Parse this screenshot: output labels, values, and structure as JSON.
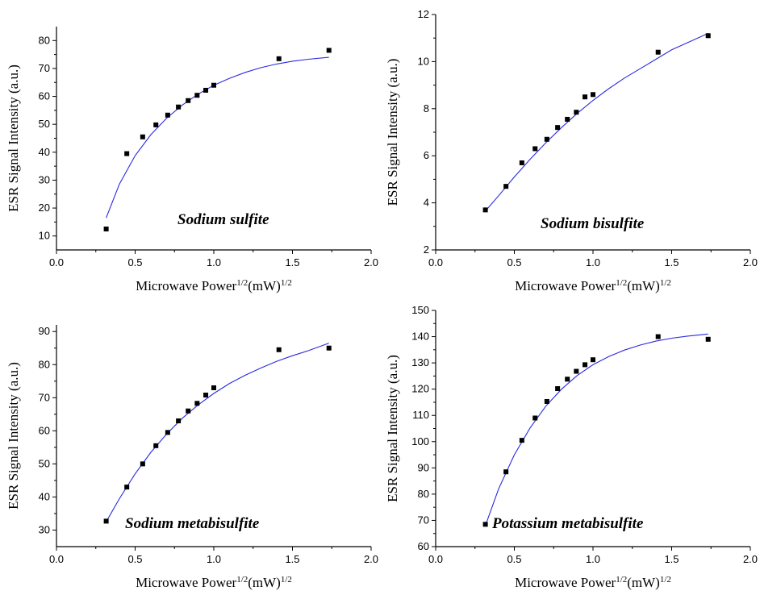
{
  "axis_text": {
    "xlabel_main": "Microwave Power",
    "xlabel_sup1": "1/2",
    "xlabel_mid": "(mW)",
    "xlabel_sup2": "1/2",
    "ylabel": "ESR Signal Intensity (a.u.)"
  },
  "chart_data": [
    {
      "type": "scatter",
      "annotation": "Sodium sulfite",
      "xlim": [
        0.0,
        2.0
      ],
      "xticks": [
        "0.0",
        "0.5",
        "1.0",
        "1.5",
        "2.0"
      ],
      "ylim": [
        5,
        85
      ],
      "yticks": [
        "10",
        "20",
        "30",
        "40",
        "50",
        "60",
        "70",
        "80"
      ],
      "points": {
        "x": [
          0.316,
          0.447,
          0.548,
          0.632,
          0.707,
          0.775,
          0.837,
          0.894,
          0.949,
          1.0,
          1.414,
          1.732
        ],
        "y": [
          12.5,
          39.5,
          45.5,
          49.8,
          53.3,
          56.2,
          58.5,
          60.4,
          62.2,
          64.0,
          73.5,
          76.5
        ]
      },
      "fit": {
        "x": [
          0.316,
          0.4,
          0.5,
          0.6,
          0.7,
          0.8,
          0.9,
          1.0,
          1.1,
          1.2,
          1.3,
          1.4,
          1.5,
          1.6,
          1.732
        ],
        "y": [
          16.5,
          28.6,
          38.8,
          46.3,
          52.2,
          56.9,
          60.8,
          64.0,
          66.5,
          68.6,
          70.3,
          71.6,
          72.6,
          73.3,
          74.0
        ]
      },
      "grid": false
    },
    {
      "type": "scatter",
      "annotation": "Sodium bisulfite",
      "xlim": [
        0.0,
        2.0
      ],
      "xticks": [
        "0.0",
        "0.5",
        "1.0",
        "1.5",
        "2.0"
      ],
      "ylim": [
        2,
        12
      ],
      "yticks": [
        "2",
        "4",
        "6",
        "8",
        "10",
        "12"
      ],
      "points": {
        "x": [
          0.316,
          0.447,
          0.548,
          0.632,
          0.707,
          0.775,
          0.837,
          0.894,
          0.949,
          1.0,
          1.414,
          1.732
        ],
        "y": [
          3.7,
          4.7,
          5.7,
          6.3,
          6.7,
          7.2,
          7.55,
          7.85,
          8.5,
          8.6,
          10.4,
          11.1
        ]
      },
      "fit": {
        "x": [
          0.316,
          0.4,
          0.5,
          0.6,
          0.7,
          0.8,
          0.9,
          1.0,
          1.1,
          1.2,
          1.3,
          1.4,
          1.5,
          1.6,
          1.732
        ],
        "y": [
          3.65,
          4.3,
          5.1,
          5.85,
          6.55,
          7.2,
          7.8,
          8.35,
          8.85,
          9.3,
          9.7,
          10.1,
          10.5,
          10.8,
          11.2
        ]
      },
      "grid": false
    },
    {
      "type": "scatter",
      "annotation": "Sodium metabisulfite",
      "xlim": [
        0.0,
        2.0
      ],
      "xticks": [
        "0.0",
        "0.5",
        "1.0",
        "1.5",
        "2.0"
      ],
      "ylim": [
        25,
        92
      ],
      "yticks": [
        "30",
        "40",
        "50",
        "60",
        "70",
        "80",
        "90"
      ],
      "points": {
        "x": [
          0.316,
          0.447,
          0.548,
          0.632,
          0.707,
          0.775,
          0.837,
          0.894,
          0.949,
          1.0,
          1.414,
          1.732
        ],
        "y": [
          32.7,
          43.0,
          50.0,
          55.5,
          59.5,
          63.0,
          66.0,
          68.3,
          70.8,
          73.0,
          84.5,
          85.0
        ]
      },
      "fit": {
        "x": [
          0.316,
          0.4,
          0.5,
          0.6,
          0.7,
          0.8,
          0.9,
          1.0,
          1.1,
          1.2,
          1.3,
          1.4,
          1.5,
          1.6,
          1.732
        ],
        "y": [
          32.5,
          39.5,
          47.0,
          53.5,
          59.0,
          63.8,
          67.8,
          71.3,
          74.3,
          76.8,
          79.0,
          81.0,
          82.7,
          84.2,
          86.5
        ]
      },
      "grid": false
    },
    {
      "type": "scatter",
      "annotation": "Potassium metabisulfite",
      "xlim": [
        0.0,
        2.0
      ],
      "xticks": [
        "0.0",
        "0.5",
        "1.0",
        "1.5",
        "2.0"
      ],
      "ylim": [
        60,
        150
      ],
      "yticks": [
        "60",
        "70",
        "80",
        "90",
        "100",
        "110",
        "120",
        "130",
        "140",
        "150"
      ],
      "points": {
        "x": [
          0.316,
          0.447,
          0.548,
          0.632,
          0.707,
          0.775,
          0.837,
          0.894,
          0.949,
          1.0,
          1.414,
          1.732
        ],
        "y": [
          68.5,
          88.5,
          100.5,
          109.0,
          115.3,
          120.2,
          123.8,
          126.8,
          129.3,
          131.2,
          140.0,
          139.0
        ]
      },
      "fit": {
        "x": [
          0.316,
          0.4,
          0.5,
          0.6,
          0.7,
          0.8,
          0.9,
          1.0,
          1.1,
          1.2,
          1.3,
          1.4,
          1.5,
          1.6,
          1.732
        ],
        "y": [
          68.0,
          82.0,
          95.0,
          105.2,
          113.5,
          120.0,
          125.2,
          129.3,
          132.4,
          134.9,
          136.8,
          138.3,
          139.4,
          140.2,
          141.0
        ]
      },
      "grid": false
    }
  ]
}
